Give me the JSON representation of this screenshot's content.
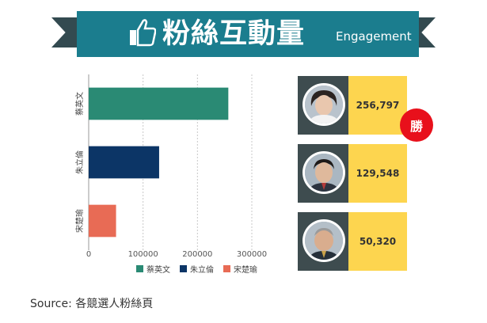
{
  "banner": {
    "title": "粉絲互動量",
    "subtitle": "Engagement"
  },
  "chart_data": {
    "type": "bar",
    "orientation": "horizontal",
    "categories": [
      "蔡英文",
      "朱立倫",
      "宋楚瑜"
    ],
    "values": [
      256797,
      129548,
      50320
    ],
    "colors": [
      "#2a8a74",
      "#0c3566",
      "#e86b55"
    ],
    "xlim": [
      0,
      300000
    ],
    "xticks": [
      0,
      100000,
      200000,
      300000
    ],
    "grid": true,
    "legend": {
      "position": "bottom"
    }
  },
  "cards": [
    {
      "value": "256,797",
      "winner": true
    },
    {
      "value": "129,548",
      "winner": false
    },
    {
      "value": "50,320",
      "winner": false
    }
  ],
  "win_badge": "勝",
  "source": "Source: 各競選人粉絲頁",
  "colors": {
    "banner": "#1b7d8e",
    "ribbon_tail": "#334a50",
    "card_photo_bg": "#3e4c4f",
    "card_value_bg": "#fdd54f",
    "badge": "#e8101b"
  }
}
